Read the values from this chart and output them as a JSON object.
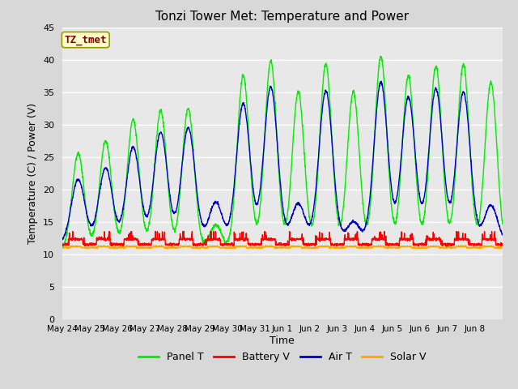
{
  "title": "Tonzi Tower Met: Temperature and Power",
  "xlabel": "Time",
  "ylabel": "Temperature (C) / Power (V)",
  "annotation": "TZ_tmet",
  "annotation_color": "#8B0000",
  "annotation_bg": "#FFFFCC",
  "annotation_edge": "#999900",
  "ylim": [
    0,
    45
  ],
  "yticks": [
    0,
    5,
    10,
    15,
    20,
    25,
    30,
    35,
    40,
    45
  ],
  "fig_bg": "#D8D8D8",
  "plot_bg": "#E8E8E8",
  "grid_color": "#FFFFFF",
  "line_colors": {
    "panel": "#00EE00",
    "battery": "#FF0000",
    "air": "#0000CC",
    "solar": "#FFA500"
  },
  "legend_labels": [
    "Panel T",
    "Battery V",
    "Air T",
    "Solar V"
  ],
  "n_days": 16,
  "xtick_labels": [
    "May 24",
    "May 25",
    "May 26",
    "May 27",
    "May 28",
    "May 29",
    "May 30",
    "May 31",
    "Jun 1",
    "Jun 2",
    "Jun 3",
    "Jun 4",
    "Jun 5",
    "Jun 6",
    "Jun 7",
    "Jun 8"
  ],
  "panel_peaks": [
    25.5,
    27.5,
    30.8,
    32.2,
    32.5,
    14.5,
    37.5,
    39.8,
    35.0,
    39.3,
    35.0,
    40.5,
    37.5,
    39.0,
    39.2,
    36.5
  ],
  "air_peaks": [
    21.5,
    23.3,
    26.5,
    28.8,
    29.5,
    18.0,
    33.2,
    35.8,
    17.8,
    35.2,
    15.0,
    36.5,
    34.2,
    35.5,
    35.0,
    17.5
  ],
  "panel_base": 10.5,
  "air_base": 11.5,
  "battery_base": 11.5,
  "solar_base": 11.0
}
